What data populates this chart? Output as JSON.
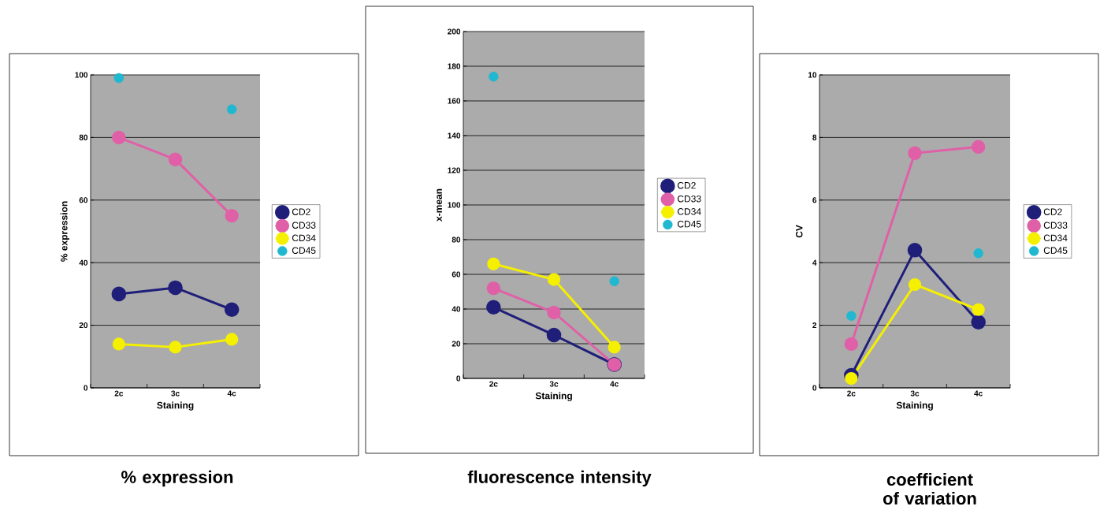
{
  "chart_data": [
    {
      "type": "line",
      "title": "% expression",
      "xlabel": "Staining",
      "ylabel": "% expression",
      "categories": [
        "2c",
        "3c",
        "4c"
      ],
      "ylim": [
        0,
        100
      ],
      "yticks": [
        0,
        20,
        40,
        60,
        80,
        100
      ],
      "grid": "y",
      "legend": "right",
      "marker": "circle",
      "series": [
        {
          "name": "CD2",
          "color": "#1f1f7a",
          "values": [
            30,
            32,
            25
          ]
        },
        {
          "name": "CD33",
          "color": "#e060a8",
          "values": [
            80,
            73,
            55
          ]
        },
        {
          "name": "CD34",
          "color": "#f5f000",
          "values": [
            14,
            13,
            15.5
          ]
        },
        {
          "name": "CD45",
          "color": "#20b8d0",
          "type": "scatter",
          "values": [
            99,
            null,
            89
          ]
        }
      ]
    },
    {
      "type": "line",
      "title": "fluorescence intensity",
      "xlabel": "Staining",
      "ylabel": "x-mean",
      "categories": [
        "2c",
        "3c",
        "4c"
      ],
      "ylim": [
        0,
        200
      ],
      "yticks": [
        0,
        20,
        40,
        60,
        80,
        100,
        120,
        140,
        160,
        180,
        200
      ],
      "grid": "y",
      "legend": "right",
      "marker": "circle",
      "series": [
        {
          "name": "CD2",
          "color": "#1f1f7a",
          "values": [
            41,
            25,
            8
          ]
        },
        {
          "name": "CD33",
          "color": "#e060a8",
          "values": [
            52,
            38,
            8
          ]
        },
        {
          "name": "CD34",
          "color": "#f5f000",
          "values": [
            66,
            57,
            18
          ]
        },
        {
          "name": "CD45",
          "color": "#20b8d0",
          "type": "scatter",
          "values": [
            174,
            null,
            56
          ]
        }
      ]
    },
    {
      "type": "line",
      "title": "coefficient of variation",
      "xlabel": "Staining",
      "ylabel": "CV",
      "categories": [
        "2c",
        "3c",
        "4c"
      ],
      "ylim": [
        0,
        10
      ],
      "yticks": [
        0,
        2,
        4,
        6,
        8,
        10
      ],
      "grid": "y",
      "legend": "right",
      "marker": "circle",
      "series": [
        {
          "name": "CD2",
          "color": "#1f1f7a",
          "values": [
            0.4,
            4.4,
            2.1
          ]
        },
        {
          "name": "CD33",
          "color": "#e060a8",
          "values": [
            1.4,
            7.5,
            7.7
          ]
        },
        {
          "name": "CD34",
          "color": "#f5f000",
          "values": [
            0.3,
            3.3,
            2.5
          ]
        },
        {
          "name": "CD45",
          "color": "#20b8d0",
          "type": "scatter",
          "values": [
            2.3,
            null,
            4.3
          ]
        }
      ]
    }
  ]
}
